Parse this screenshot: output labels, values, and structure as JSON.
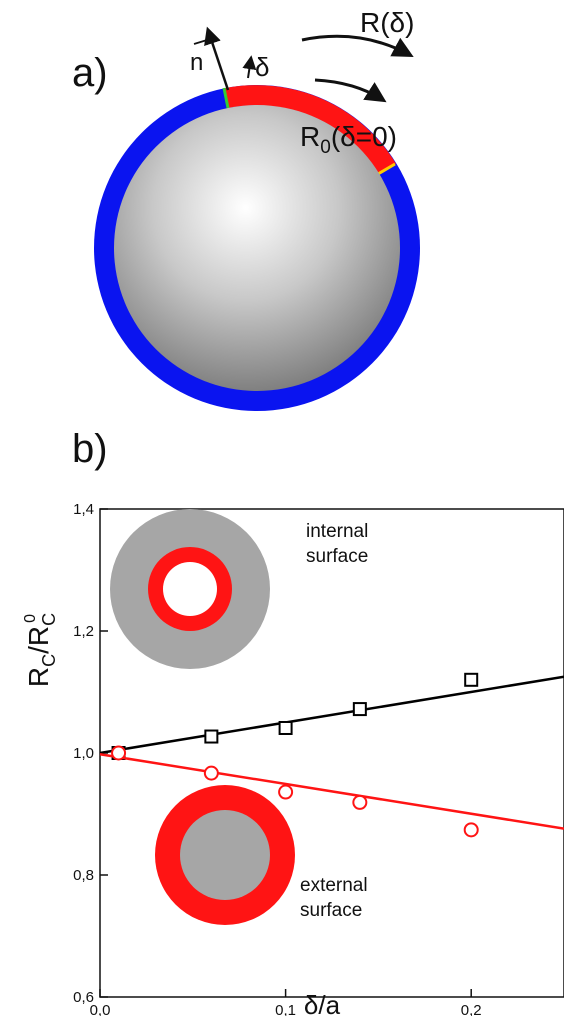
{
  "panel_a": {
    "label": "a)",
    "normal_label": "n",
    "delta_label": "δ",
    "r_delta_label": "R(δ)",
    "r0_main": "R",
    "r0_sub": "0",
    "r0_tail": "(δ=0)",
    "colors": {
      "shell": "#0a14f0",
      "patch": "#ff1414",
      "sphere_light": "#ffffff",
      "sphere_dark": "#6e6e6e"
    }
  },
  "panel_b": {
    "label": "b)",
    "inset_internal": [
      "internal",
      "surface"
    ],
    "inset_external": [
      "external",
      "surface"
    ],
    "colors": {
      "gray": "#a6a6a6",
      "red": "#ff1414"
    }
  },
  "chart_data": {
    "type": "scatter",
    "xlabel": "δ/a",
    "ylabel_main": "R",
    "ylabel_sub": "C",
    "ylabel_den": "R",
    "ylabel_den_sub": "C",
    "ylabel_den_sup": "0",
    "xlim": [
      0.0,
      0.25
    ],
    "ylim": [
      0.6,
      1.4
    ],
    "x_ticks": [
      "0,0",
      "0,1",
      "0,2"
    ],
    "x_tick_values": [
      0.0,
      0.1,
      0.2
    ],
    "y_ticks": [
      "0,6",
      "0,8",
      "1,0",
      "1,2",
      "1,4"
    ],
    "y_tick_values": [
      0.6,
      0.8,
      1.0,
      1.2,
      1.4
    ],
    "series": [
      {
        "marker": "square",
        "color": "#000000",
        "points": [
          [
            0.01,
            1.0
          ],
          [
            0.06,
            1.027
          ],
          [
            0.1,
            1.041
          ],
          [
            0.14,
            1.072
          ],
          [
            0.2,
            1.12
          ]
        ],
        "fit": [
          [
            0.0,
            1.0
          ],
          [
            0.25,
            1.125
          ]
        ]
      },
      {
        "marker": "circle",
        "color": "#ff1414",
        "points": [
          [
            0.01,
            1.0
          ],
          [
            0.06,
            0.967
          ],
          [
            0.1,
            0.936
          ],
          [
            0.14,
            0.919
          ],
          [
            0.2,
            0.874
          ]
        ],
        "fit": [
          [
            0.0,
            0.998
          ],
          [
            0.25,
            0.876
          ]
        ]
      }
    ]
  }
}
